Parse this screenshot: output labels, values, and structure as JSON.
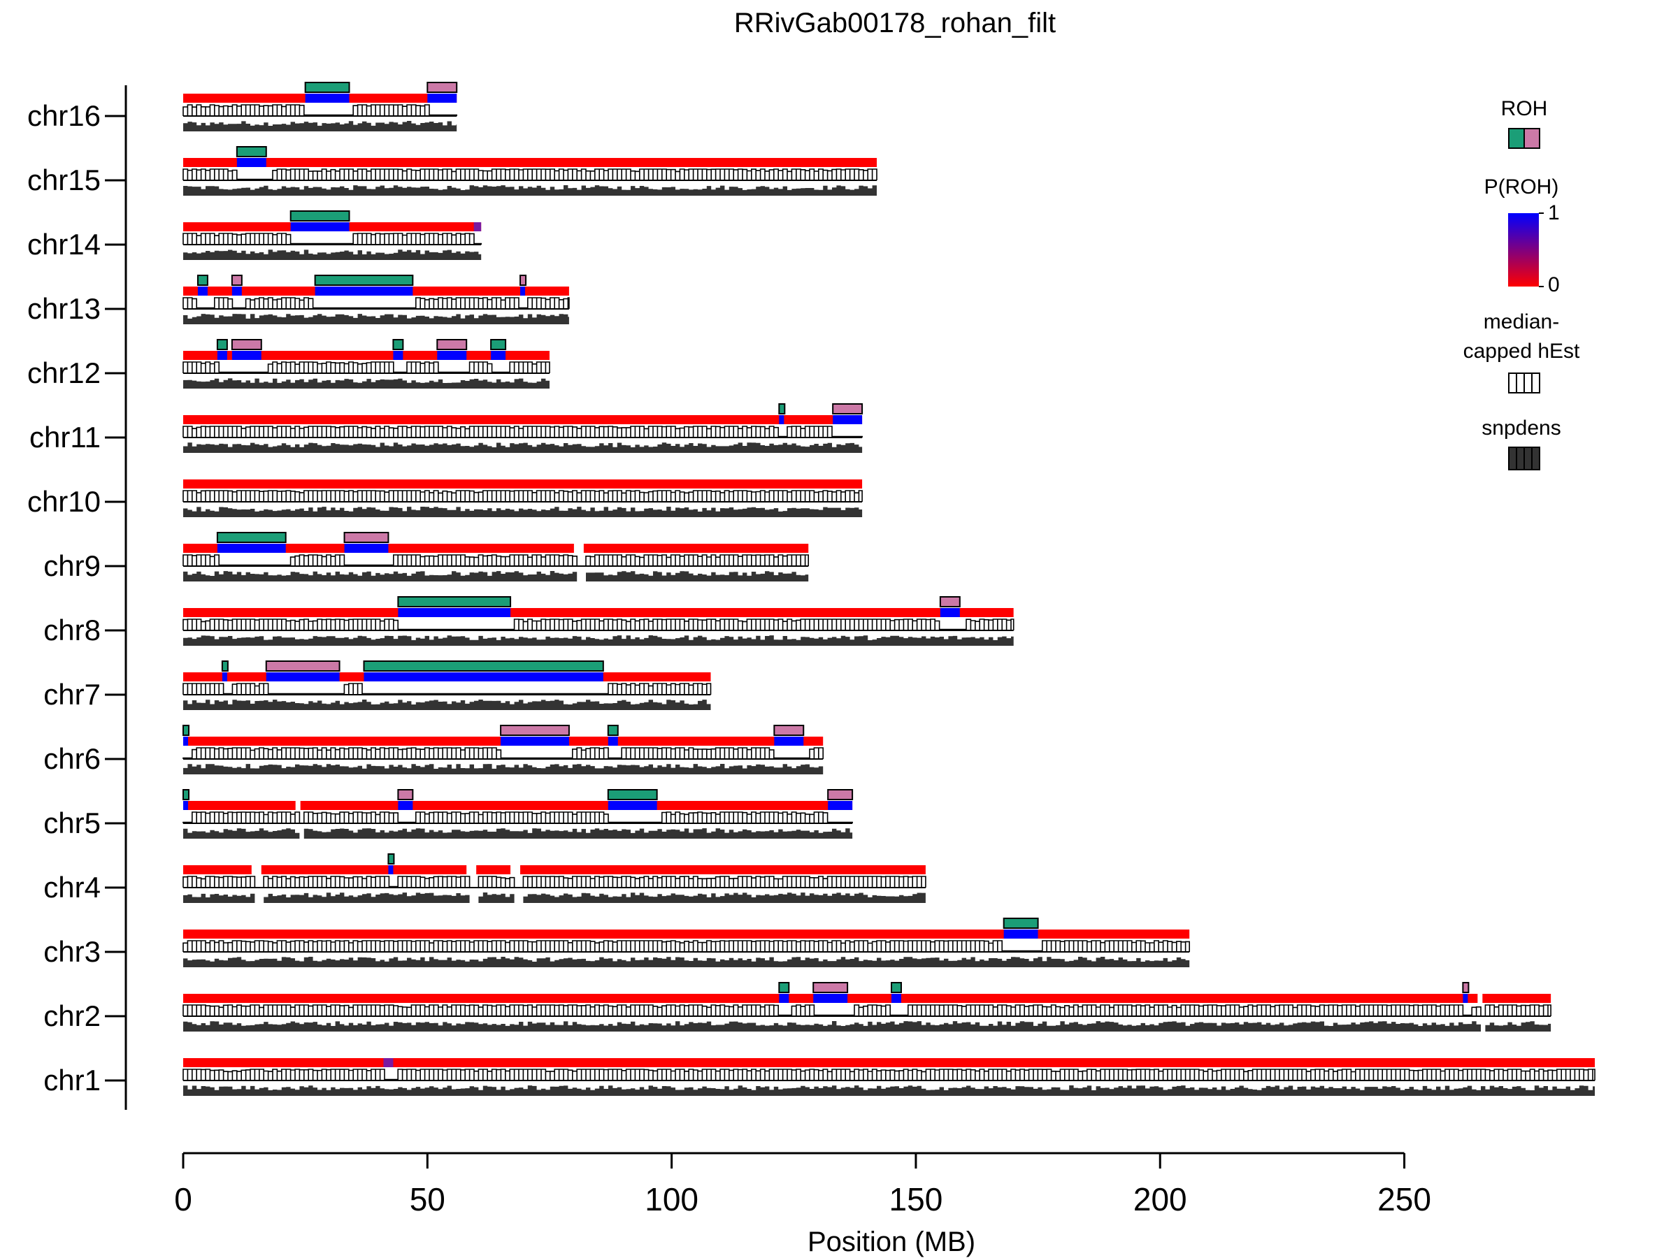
{
  "chart_data": {
    "type": "genome-track",
    "title": "RRivGab00178_rohan_filt",
    "xlabel": "Position (MB)",
    "xlim": [
      0,
      290
    ],
    "xticks": [
      0,
      50,
      100,
      150,
      200,
      250
    ],
    "legend": {
      "placement": "right",
      "roh_title": "ROH",
      "proh_title": "P(ROH)",
      "proh_max": "1",
      "proh_min": "0",
      "hest_title_line1": "median-",
      "hest_title_line2": "capped hEst",
      "snpdens_title": "snpdens"
    },
    "colors": {
      "roh_teal": "#1b9e77",
      "roh_pink": "#cc79a7",
      "proh_low": "#ff0000",
      "proh_high": "#0000ff",
      "snpdens": "#333333",
      "hest_fill": "#ffffff",
      "hest_stroke": "#000000"
    },
    "chromosomes": [
      {
        "name": "chr16",
        "length": 56,
        "roh": [
          [
            25,
            34,
            "teal"
          ],
          [
            50,
            56,
            "pink"
          ]
        ],
        "gaps": []
      },
      {
        "name": "chr15",
        "length": 142,
        "roh": [
          [
            11,
            17,
            "teal"
          ]
        ],
        "gaps": []
      },
      {
        "name": "chr14",
        "length": 61,
        "roh": [
          [
            22,
            34,
            "teal"
          ],
          [
            59.5,
            61,
            "blend"
          ]
        ],
        "gaps": []
      },
      {
        "name": "chr13",
        "length": 79,
        "roh": [
          [
            3,
            5,
            "teal"
          ],
          [
            10,
            12,
            "pink"
          ],
          [
            27,
            47,
            "teal"
          ],
          [
            69,
            70,
            "pink"
          ]
        ],
        "gaps": []
      },
      {
        "name": "chr12",
        "length": 75,
        "roh": [
          [
            7,
            9,
            "teal"
          ],
          [
            10,
            16,
            "pink"
          ],
          [
            43,
            45,
            "teal"
          ],
          [
            52,
            58,
            "pink"
          ],
          [
            63,
            66,
            "teal"
          ]
        ],
        "gaps": []
      },
      {
        "name": "chr11",
        "length": 139,
        "roh": [
          [
            122,
            123,
            "teal"
          ],
          [
            133,
            139,
            "pink"
          ]
        ],
        "gaps": []
      },
      {
        "name": "chr10",
        "length": 139,
        "roh": [],
        "gaps": []
      },
      {
        "name": "chr9",
        "length": 128,
        "roh": [
          [
            7,
            21,
            "teal"
          ],
          [
            33,
            42,
            "pink"
          ]
        ],
        "gaps": [
          [
            80,
            82
          ]
        ]
      },
      {
        "name": "chr8",
        "length": 170,
        "roh": [
          [
            44,
            67,
            "teal"
          ],
          [
            155,
            159,
            "pink"
          ]
        ],
        "gaps": []
      },
      {
        "name": "chr7",
        "length": 108,
        "roh": [
          [
            8,
            9,
            "teal"
          ],
          [
            17,
            32,
            "pink"
          ],
          [
            37,
            86,
            "teal"
          ]
        ],
        "gaps": []
      },
      {
        "name": "chr6",
        "length": 131,
        "roh": [
          [
            0,
            1,
            "teal"
          ],
          [
            65,
            79,
            "pink"
          ],
          [
            87,
            89,
            "teal"
          ],
          [
            121,
            127,
            "pink"
          ]
        ],
        "gaps": []
      },
      {
        "name": "chr5",
        "length": 137,
        "roh": [
          [
            0,
            1,
            "teal"
          ],
          [
            44,
            47,
            "pink"
          ],
          [
            87,
            97,
            "teal"
          ],
          [
            132,
            137,
            "pink"
          ]
        ],
        "gaps": [
          [
            23,
            24
          ]
        ]
      },
      {
        "name": "chr4",
        "length": 152,
        "roh": [
          [
            42,
            43,
            "teal"
          ]
        ],
        "gaps": [
          [
            14,
            16
          ],
          [
            58,
            60
          ],
          [
            67,
            69
          ]
        ]
      },
      {
        "name": "chr3",
        "length": 206,
        "roh": [
          [
            168,
            175,
            "teal"
          ]
        ],
        "gaps": []
      },
      {
        "name": "chr2",
        "length": 280,
        "roh": [
          [
            122,
            124,
            "teal"
          ],
          [
            129,
            136,
            "pink"
          ],
          [
            145,
            147,
            "teal"
          ],
          [
            262,
            263,
            "pink"
          ]
        ],
        "gaps": [
          [
            265,
            266
          ]
        ]
      },
      {
        "name": "chr1",
        "length": 289,
        "roh": [
          [
            41,
            43,
            "blend"
          ]
        ],
        "gaps": []
      }
    ]
  }
}
